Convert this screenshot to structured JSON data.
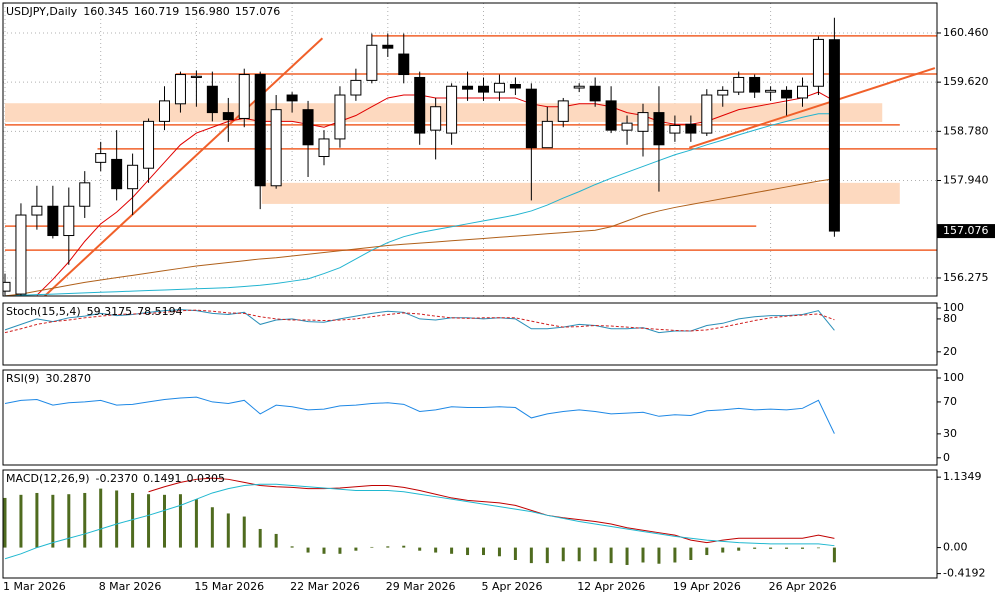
{
  "chart_data": [
    {
      "type": "candlestick",
      "title": "USDJPY,Daily",
      "readout": [
        "160.345",
        "160.719",
        "156.980",
        "157.076"
      ],
      "categories": [
        "1 Mar 2026",
        null,
        null,
        null,
        null,
        null,
        "8 Mar 2026",
        null,
        null,
        null,
        null,
        null,
        "15 Mar 2026",
        null,
        null,
        null,
        null,
        null,
        "22 Mar 2026",
        null,
        null,
        null,
        null,
        null,
        "29 Mar 2026",
        null,
        null,
        null,
        null,
        null,
        "5 Apr 2026",
        null,
        null,
        null,
        null,
        null,
        "12 Apr 2026",
        null,
        null,
        null,
        null,
        null,
        "19 Apr 2026",
        null,
        null,
        null,
        null,
        null,
        "26 Apr 2026",
        null,
        null,
        null,
        null
      ],
      "open": [
        156.05,
        156.0,
        157.35,
        157.5,
        157.0,
        157.5,
        158.25,
        158.3,
        157.8,
        158.15,
        158.95,
        159.25,
        159.7,
        159.55,
        159.1,
        159.0,
        159.75,
        157.85,
        159.4,
        159.15,
        158.35,
        158.65,
        159.4,
        159.65,
        160.25,
        160.1,
        159.7,
        158.8,
        158.75,
        159.55,
        159.55,
        159.45,
        159.58,
        159.5,
        158.5,
        158.95,
        159.52,
        159.55,
        159.3,
        158.8,
        158.78,
        159.1,
        158.75,
        158.9,
        158.75,
        159.4,
        159.45,
        159.7,
        159.45,
        159.48,
        159.35,
        159.55,
        160.345
      ],
      "high": [
        156.35,
        157.55,
        157.85,
        157.85,
        157.82,
        158.1,
        158.6,
        158.8,
        158.4,
        159.0,
        159.55,
        159.8,
        159.82,
        159.8,
        159.35,
        159.85,
        159.8,
        159.4,
        159.45,
        159.3,
        158.8,
        159.55,
        159.85,
        160.45,
        160.45,
        160.45,
        159.8,
        159.35,
        159.6,
        159.8,
        159.7,
        159.75,
        159.7,
        159.6,
        159.2,
        159.35,
        159.6,
        159.7,
        159.55,
        159.05,
        159.25,
        159.55,
        159.05,
        159.05,
        159.5,
        159.55,
        159.8,
        159.75,
        159.55,
        159.55,
        159.7,
        160.4,
        160.719
      ],
      "low": [
        155.98,
        155.98,
        157.1,
        156.95,
        156.5,
        157.3,
        158.1,
        157.6,
        157.35,
        157.9,
        158.8,
        159.1,
        159.2,
        158.95,
        158.6,
        158.85,
        157.45,
        157.8,
        159.1,
        158.0,
        158.2,
        158.5,
        159.3,
        159.6,
        160.05,
        159.6,
        158.55,
        158.3,
        158.55,
        159.3,
        159.3,
        159.3,
        159.4,
        157.6,
        158.5,
        158.85,
        159.45,
        159.2,
        158.75,
        158.55,
        158.35,
        157.75,
        158.6,
        158.6,
        158.7,
        159.2,
        159.4,
        159.35,
        159.3,
        159.05,
        159.2,
        159.4,
        156.98
      ],
      "close": [
        156.2,
        157.35,
        157.5,
        157.0,
        157.5,
        157.9,
        158.4,
        157.8,
        158.2,
        158.95,
        159.3,
        159.75,
        159.72,
        159.1,
        158.98,
        159.75,
        157.85,
        159.15,
        159.3,
        158.55,
        158.65,
        159.4,
        159.65,
        160.25,
        160.2,
        159.75,
        158.75,
        159.2,
        159.55,
        159.5,
        159.45,
        159.6,
        159.52,
        158.5,
        158.95,
        159.3,
        159.55,
        159.3,
        158.8,
        158.92,
        159.1,
        158.55,
        158.88,
        158.75,
        159.4,
        159.48,
        159.7,
        159.45,
        159.48,
        159.35,
        159.55,
        160.35,
        157.076
      ],
      "up_color": "#ffffff",
      "down_color": "#000000",
      "series": [
        {
          "color": "#e00000",
          "values": [
            null,
            null,
            155.98,
            156.25,
            156.55,
            156.9,
            157.2,
            157.4,
            157.65,
            157.95,
            158.25,
            158.55,
            158.75,
            158.85,
            158.95,
            159.0,
            158.95,
            158.95,
            158.95,
            158.9,
            158.85,
            158.95,
            159.05,
            159.2,
            159.35,
            159.4,
            159.4,
            159.35,
            159.35,
            159.35,
            159.35,
            159.35,
            159.35,
            159.25,
            159.2,
            159.2,
            159.25,
            159.25,
            159.2,
            159.1,
            159.05,
            158.95,
            158.9,
            158.9,
            158.95,
            159.05,
            159.15,
            159.2,
            159.25,
            159.3,
            159.35,
            159.45,
            159.3
          ]
        },
        {
          "color": "#22b4d0",
          "values": [
            155.97,
            155.98,
            155.99,
            156.0,
            156.01,
            156.02,
            156.03,
            156.04,
            156.05,
            156.06,
            156.07,
            156.08,
            156.09,
            156.1,
            156.11,
            156.13,
            156.15,
            156.18,
            156.22,
            156.26,
            156.35,
            156.45,
            156.6,
            156.75,
            156.88,
            156.98,
            157.05,
            157.1,
            157.15,
            157.2,
            157.25,
            157.3,
            157.35,
            157.42,
            157.52,
            157.64,
            157.75,
            157.87,
            157.98,
            158.08,
            158.18,
            158.28,
            158.38,
            158.46,
            158.55,
            158.63,
            158.72,
            158.8,
            158.88,
            158.95,
            159.02,
            159.08,
            159.08
          ]
        },
        {
          "color": "#b0601a",
          "values": [
            155.97,
            156.0,
            156.05,
            156.1,
            156.15,
            156.2,
            156.24,
            156.28,
            156.32,
            156.36,
            156.4,
            156.44,
            156.48,
            156.51,
            156.54,
            156.57,
            156.6,
            156.62,
            156.65,
            156.68,
            156.71,
            156.74,
            156.77,
            156.8,
            156.83,
            156.85,
            156.87,
            156.89,
            156.91,
            156.93,
            156.95,
            156.97,
            156.99,
            157.01,
            157.03,
            157.05,
            157.07,
            157.09,
            157.15,
            157.25,
            157.35,
            157.42,
            157.48,
            157.53,
            157.58,
            157.63,
            157.68,
            157.73,
            157.78,
            157.83,
            157.88,
            157.93,
            157.97
          ]
        }
      ],
      "levels": [
        {
          "value": 160.41,
          "from": 23,
          "to": 58.4
        },
        {
          "value": 159.76,
          "from": 10.7,
          "to": 58.4
        },
        {
          "value": 158.89,
          "from": 0,
          "to": 56.1
        },
        {
          "value": 158.48,
          "from": 5.8,
          "to": 58.4
        },
        {
          "value": 157.16,
          "from": 0,
          "to": 47.1
        },
        {
          "value": 156.75,
          "from": 0,
          "to": 58.4
        }
      ],
      "zones": [
        {
          "low": 158.94,
          "high": 159.26,
          "from": 0,
          "to": 55.0
        },
        {
          "low": 157.54,
          "high": 157.9,
          "from": 16.1,
          "to": 56.1
        }
      ],
      "trendlines": [
        {
          "from": [
            2.5,
            155.97
          ],
          "to": [
            19.9,
            160.37
          ]
        },
        {
          "from": [
            42.9,
            158.5
          ],
          "to": [
            58.3,
            159.86
          ]
        }
      ],
      "drawing_color": "#f0602a",
      "zone_color": "#fdd9bf",
      "ylim": [
        155.967,
        160.972
      ],
      "yticks": [
        {
          "value": 160.46,
          "label": "160.460"
        },
        {
          "value": 159.62,
          "label": "159.620"
        },
        {
          "value": 158.78,
          "label": "158.780"
        },
        {
          "value": 157.94,
          "label": "157.940"
        },
        {
          "value": 156.275,
          "label": "156.275"
        }
      ],
      "grid": true
    },
    {
      "type": "line",
      "title": "Stoch(15,5,4)",
      "readout": [
        "59.3175",
        "78.5194"
      ],
      "series": [
        {
          "color": "#2a8fb8",
          "values": [
            60,
            70,
            80,
            75,
            82,
            85,
            90,
            86,
            88,
            92,
            95,
            97,
            95,
            90,
            88,
            92,
            70,
            78,
            80,
            75,
            74,
            80,
            85,
            90,
            94,
            92,
            80,
            78,
            82,
            82,
            80,
            82,
            80,
            62,
            62,
            65,
            70,
            68,
            62,
            62,
            64,
            55,
            58,
            58,
            68,
            72,
            80,
            84,
            86,
            86,
            88,
            95,
            59.3175
          ]
        },
        {
          "color": "#d02020",
          "dashed": true,
          "values": [
            55,
            62,
            70,
            75,
            78,
            82,
            85,
            88,
            89,
            90,
            92,
            95,
            96,
            94,
            91,
            90,
            84,
            80,
            78,
            78,
            77,
            78,
            80,
            84,
            88,
            91,
            89,
            85,
            82,
            81,
            82,
            82,
            82,
            76,
            70,
            65,
            66,
            68,
            67,
            65,
            63,
            61,
            59,
            58,
            60,
            65,
            71,
            77,
            82,
            85,
            87,
            89,
            78.5194
          ]
        }
      ],
      "ylim": [
        -4,
        109
      ],
      "yticks": [
        100,
        80,
        20
      ],
      "grid": false
    },
    {
      "type": "line",
      "title": "RSI(9)",
      "readout": [
        "30.2870"
      ],
      "series": [
        {
          "color": "#1e88e5",
          "values": [
            68,
            72,
            73,
            66,
            69,
            70,
            72,
            66,
            67,
            70,
            73,
            75,
            76,
            70,
            68,
            72,
            55,
            66,
            64,
            60,
            61,
            65,
            66,
            68,
            69,
            67,
            58,
            60,
            64,
            63,
            63,
            64,
            63,
            50,
            55,
            58,
            60,
            58,
            55,
            56,
            57,
            52,
            54,
            53,
            59,
            60,
            62,
            60,
            61,
            60,
            62,
            72,
            30.287
          ]
        }
      ],
      "ylim": [
        -9,
        110
      ],
      "yticks": [
        100,
        70,
        30,
        0
      ],
      "grid": false
    },
    {
      "type": "combo",
      "title": "MACD(12,26,9)",
      "readout": [
        "-0.2370",
        "0.1491",
        "0.0305"
      ],
      "series": [
        {
          "kind": "bar",
          "color": "#4f6b1f",
          "values": [
            0.8,
            0.85,
            0.88,
            0.85,
            0.86,
            0.88,
            0.95,
            0.92,
            0.88,
            0.86,
            0.85,
            0.86,
            0.78,
            0.65,
            0.55,
            0.5,
            0.3,
            0.22,
            0.02,
            -0.08,
            -0.1,
            -0.1,
            -0.05,
            0.01,
            0.02,
            0.03,
            -0.05,
            -0.08,
            -0.1,
            -0.12,
            -0.12,
            -0.14,
            -0.2,
            -0.25,
            -0.25,
            -0.22,
            -0.22,
            -0.22,
            -0.25,
            -0.28,
            -0.24,
            -0.26,
            -0.24,
            -0.2,
            -0.12,
            -0.08,
            -0.05,
            -0.02,
            -0.02,
            -0.02,
            -0.02,
            -0.01,
            -0.237
          ]
        },
        {
          "kind": "line",
          "color": "#c00000",
          "values": [
            null,
            null,
            null,
            null,
            null,
            null,
            null,
            null,
            null,
            0.9,
            0.98,
            1.05,
            1.1,
            1.12,
            1.1,
            1.05,
            1.0,
            0.98,
            0.97,
            0.95,
            0.95,
            0.96,
            0.98,
            1.0,
            1.0,
            0.97,
            0.92,
            0.86,
            0.8,
            0.76,
            0.74,
            0.72,
            0.68,
            0.6,
            0.52,
            0.48,
            0.45,
            0.42,
            0.38,
            0.32,
            0.28,
            0.24,
            0.2,
            0.12,
            0.08,
            0.12,
            0.15,
            0.15,
            0.15,
            0.15,
            0.15,
            0.2,
            0.1491
          ]
        },
        {
          "kind": "line",
          "color": "#20b8d0",
          "values": [
            -0.18,
            -0.1,
            0.0,
            0.08,
            0.15,
            0.22,
            0.3,
            0.38,
            0.45,
            0.52,
            0.6,
            0.68,
            0.78,
            0.88,
            0.95,
            1.0,
            1.02,
            1.02,
            1.0,
            0.98,
            0.96,
            0.94,
            0.92,
            0.92,
            0.92,
            0.9,
            0.86,
            0.82,
            0.78,
            0.74,
            0.7,
            0.66,
            0.62,
            0.58,
            0.52,
            0.47,
            0.42,
            0.38,
            0.34,
            0.3,
            0.26,
            0.22,
            0.18,
            0.15,
            0.12,
            0.1,
            0.08,
            0.07,
            0.06,
            0.06,
            0.06,
            0.06,
            0.0305
          ]
        }
      ],
      "ylim": [
        -0.49,
        1.25
      ],
      "yticks": [
        1.1349,
        {
          "value": 0,
          "label": "0.00"
        },
        -0.4192
      ],
      "grid": false
    }
  ]
}
